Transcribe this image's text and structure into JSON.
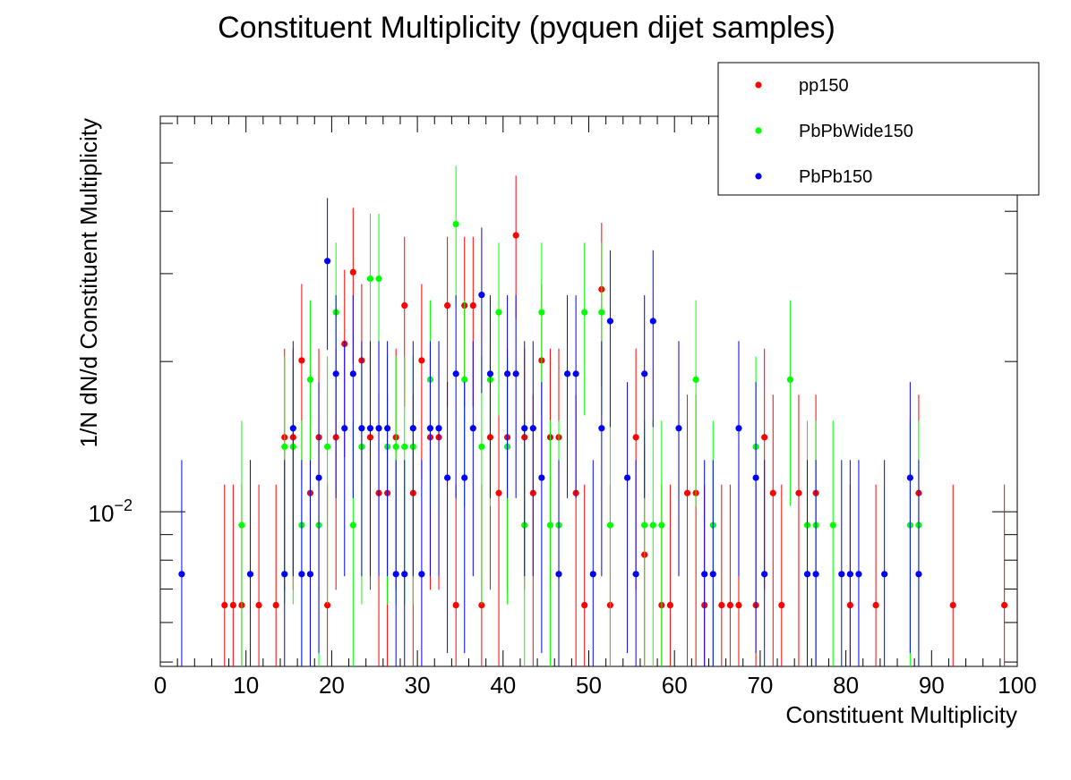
{
  "chart_data": {
    "type": "scatter",
    "title": "Constituent Multiplicity (pyquen dijet samples)",
    "xlabel": "Constituent Multiplicity",
    "ylabel": "1/N dN/d Constituent Multiplicity",
    "xlim": [
      0,
      100
    ],
    "ylim": [
      0.0049,
      0.062
    ],
    "ylog": true,
    "x_ticks": [
      "0",
      "10",
      "20",
      "30",
      "40",
      "50",
      "60",
      "70",
      "80",
      "90",
      "100"
    ],
    "y_tick_label": {
      "base": "10",
      "exponent": "−2",
      "value": 0.01
    },
    "legend_position": "top-right",
    "series": [
      {
        "name": "pp150",
        "color": "#ff0000",
        "x": [
          7.5,
          8.5,
          9.5,
          11.5,
          13.5,
          14.5,
          15.5,
          16.5,
          17.5,
          18.5,
          19.5,
          20.5,
          21.5,
          22.5,
          23.5,
          24.5,
          25.5,
          26.5,
          27.5,
          28.5,
          29.5,
          30.5,
          31.5,
          32.5,
          33.5,
          34.5,
          35.5,
          36.5,
          37.5,
          38.5,
          39.5,
          40.5,
          41.5,
          42.5,
          43.5,
          44.5,
          45.5,
          46.5,
          48.5,
          49.5,
          51.5,
          52.5,
          55.5,
          56.5,
          58.5,
          59.5,
          61.5,
          62.5,
          63.5,
          65.5,
          66.5,
          67.5,
          69.5,
          70.5,
          71.5,
          72.5,
          74.5,
          76.5,
          80.5,
          83.5,
          88.5,
          92.5,
          98.5
        ],
        "y": [
          0.0065,
          0.0065,
          0.0065,
          0.0065,
          0.0065,
          0.0141,
          0.0141,
          0.0201,
          0.0109,
          0.0141,
          0.0065,
          0.0141,
          0.0217,
          0.0302,
          0.0201,
          0.0141,
          0.0109,
          0.0109,
          0.0141,
          0.0259,
          0.0109,
          0.0201,
          0.0141,
          0.0141,
          0.0259,
          0.0065,
          0.0259,
          0.0259,
          0.0065,
          0.0141,
          0.0109,
          0.0141,
          0.0358,
          0.0141,
          0.0109,
          0.0201,
          0.0141,
          0.0141,
          0.0109,
          0.0065,
          0.0279,
          0.0065,
          0.0141,
          0.0082,
          0.0065,
          0.0065,
          0.0109,
          0.0109,
          0.0065,
          0.0065,
          0.0065,
          0.0065,
          0.0065,
          0.0141,
          0.0109,
          0.0065,
          0.0109,
          0.0109,
          0.0065,
          0.0065,
          0.0109,
          0.0065,
          0.0065
        ]
      },
      {
        "name": "PbPbWide150",
        "color": "#00ff00",
        "x": [
          9.5,
          14.5,
          15.5,
          16.5,
          17.5,
          18.5,
          19.5,
          20.5,
          22.5,
          23.5,
          24.5,
          25.5,
          26.5,
          27.5,
          28.5,
          29.5,
          31.5,
          34.5,
          35.5,
          37.5,
          38.5,
          39.5,
          40.5,
          42.5,
          44.5,
          45.5,
          46.5,
          49.5,
          51.5,
          52.5,
          56.5,
          57.5,
          58.5,
          62.5,
          64.5,
          69.5,
          73.5,
          75.5,
          76.5,
          78.5,
          87.5,
          88.5
        ],
        "y": [
          0.0094,
          0.0135,
          0.0135,
          0.0094,
          0.0184,
          0.0094,
          0.0135,
          0.0251,
          0.0094,
          0.0135,
          0.0293,
          0.0293,
          0.0135,
          0.0135,
          0.0135,
          0.0135,
          0.0184,
          0.0377,
          0.0184,
          0.0135,
          0.0184,
          0.0251,
          0.0135,
          0.0094,
          0.0251,
          0.0094,
          0.0094,
          0.0251,
          0.0251,
          0.0094,
          0.0094,
          0.0094,
          0.0094,
          0.0184,
          0.0094,
          0.0135,
          0.0184,
          0.0094,
          0.0094,
          0.0094,
          0.0094,
          0.0094
        ]
      },
      {
        "name": "PbPb150",
        "color": "#0000ff",
        "x": [
          2.5,
          10.5,
          14.5,
          15.5,
          16.5,
          17.5,
          18.5,
          19.5,
          20.5,
          21.5,
          22.5,
          23.5,
          24.5,
          25.5,
          26.5,
          27.5,
          28.5,
          29.5,
          30.5,
          31.5,
          32.5,
          33.5,
          34.5,
          35.5,
          36.5,
          37.5,
          38.5,
          40.5,
          41.5,
          42.5,
          43.5,
          44.5,
          46.5,
          47.5,
          48.5,
          50.5,
          51.5,
          52.5,
          54.5,
          55.5,
          56.5,
          57.5,
          60.5,
          63.5,
          64.5,
          67.5,
          69.5,
          70.5,
          75.5,
          76.5,
          79.5,
          80.5,
          81.5,
          84.5,
          87.5,
          88.5
        ],
        "y": [
          0.0075,
          0.0075,
          0.0075,
          0.0147,
          0.0075,
          0.0075,
          0.0117,
          0.0318,
          0.0189,
          0.0147,
          0.0189,
          0.0147,
          0.0147,
          0.0147,
          0.0147,
          0.0075,
          0.0075,
          0.0147,
          0.0075,
          0.0147,
          0.0147,
          0.0117,
          0.0189,
          0.0117,
          0.0147,
          0.0272,
          0.0189,
          0.0189,
          0.0189,
          0.0147,
          0.0147,
          0.0117,
          0.0075,
          0.0189,
          0.0189,
          0.0075,
          0.0147,
          0.0241,
          0.0117,
          0.0075,
          0.0189,
          0.0241,
          0.0147,
          0.0075,
          0.0075,
          0.0147,
          0.0117,
          0.0075,
          0.0075,
          0.0075,
          0.0075,
          0.0075,
          0.0075,
          0.0075,
          0.0117,
          0.0075
        ]
      }
    ]
  }
}
